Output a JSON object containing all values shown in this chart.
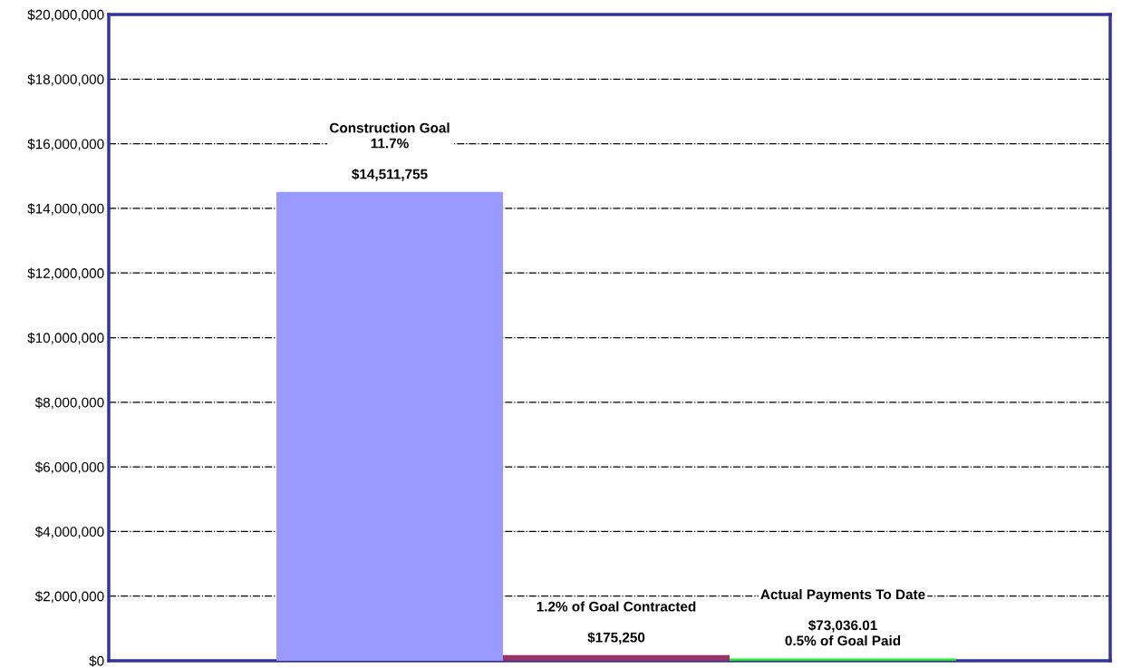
{
  "chart_data": {
    "type": "bar",
    "categories": [
      null,
      null,
      null
    ],
    "values": [
      14511755,
      175250,
      73036.01
    ],
    "colors": [
      "#9999ff",
      "#993366",
      "#22ee22"
    ],
    "value_labels": [
      "Construction Goal\n11.7%\n\n$14,511,755",
      "1.2% of Goal Contracted\n\n$175,250",
      "Actual Payments To Date\n\n$73,036.01\n0.5% of Goal Paid"
    ],
    "ylim": [
      0,
      20000000
    ],
    "yticks": [
      {
        "value": 0,
        "label": "$0"
      },
      {
        "value": 2000000,
        "label": "$2,000,000"
      },
      {
        "value": 4000000,
        "label": "$4,000,000"
      },
      {
        "value": 6000000,
        "label": "$6,000,000"
      },
      {
        "value": 8000000,
        "label": "$8,000,000"
      },
      {
        "value": 10000000,
        "label": "$10,000,000"
      },
      {
        "value": 12000000,
        "label": "$12,000,000"
      },
      {
        "value": 14000000,
        "label": "$14,000,000"
      },
      {
        "value": 16000000,
        "label": "$16,000,000"
      },
      {
        "value": 18000000,
        "label": "$18,000,000"
      },
      {
        "value": 20000000,
        "label": "$20,000,000"
      }
    ],
    "grid": "y"
  }
}
